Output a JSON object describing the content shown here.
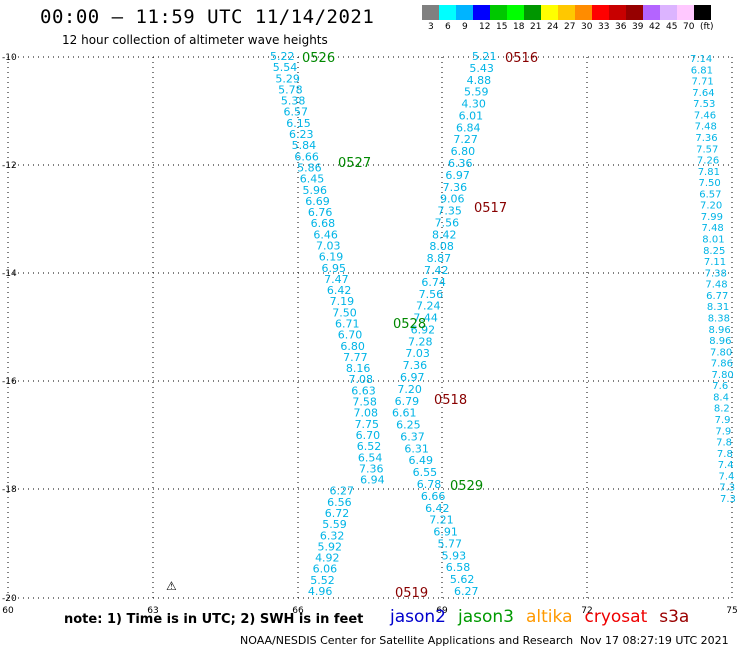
{
  "header": {
    "title": "00:00 – 11:59 UTC 11/14/2021",
    "subtitle": "12 hour collection of altimeter wave heights"
  },
  "legend": {
    "colors": [
      "#808080",
      "#00ffff",
      "#00b4ff",
      "#0000ff",
      "#00c800",
      "#00ff00",
      "#009600",
      "#ffff00",
      "#ffc800",
      "#ff8c00",
      "#ff0000",
      "#c80000",
      "#960000",
      "#b464ff",
      "#dcb4ff",
      "#ffc8ff",
      "#000000"
    ],
    "labels": [
      "3",
      "6",
      "9",
      "12",
      "15",
      "18",
      "21",
      "24",
      "27",
      "30",
      "33",
      "36",
      "39",
      "42",
      "45",
      "70",
      "(ft)"
    ]
  },
  "axes": {
    "lon_labels": [
      "60",
      "63",
      "66",
      "69",
      "72",
      "75"
    ],
    "lat_labels": [
      "-10",
      "-12",
      "-14",
      "-16",
      "-18",
      "-20"
    ]
  },
  "tracks": {
    "colors": {
      "jason3": "#008800",
      "cryosat": "#880000",
      "swh": "#00b4e6"
    },
    "pass_times": [
      {
        "text": "0526",
        "mission": "jason3"
      },
      {
        "text": "0527",
        "mission": "jason3"
      },
      {
        "text": "0528",
        "mission": "jason3"
      },
      {
        "text": "0529",
        "mission": "jason3"
      },
      {
        "text": "0516",
        "mission": "cryosat"
      },
      {
        "text": "0517",
        "mission": "cryosat"
      },
      {
        "text": "0518",
        "mission": "cryosat"
      },
      {
        "text": "0519",
        "mission": "cryosat"
      }
    ],
    "jason3_swh": [
      "5.22",
      "5.54",
      "5.29",
      "5.78",
      "5.38",
      "6.57",
      "6.15",
      "6.23",
      "5.84",
      "6.66",
      "5.86",
      "6.45",
      "5.96",
      "6.69",
      "6.76",
      "6.68",
      "6.46",
      "7.03",
      "6.19",
      "6.95",
      "7.47",
      "6.42",
      "7.19",
      "7.50",
      "6.71",
      "6.70",
      "6.80",
      "7.77",
      "8.16",
      "7.08",
      "6.63",
      "7.58",
      "7.08",
      "7.75",
      "6.70",
      "6.52",
      "6.54",
      "7.36",
      "6.94",
      "6.27",
      "6.56",
      "6.72",
      "5.59",
      "6.32",
      "5.92",
      "4.92",
      "6.06",
      "5.52",
      "4.96"
    ],
    "cryosat_swh": [
      "5.21",
      "5.43",
      "4.88",
      "5.59",
      "4.30",
      "6.01",
      "6.84",
      "7.27",
      "6.80",
      "6.36",
      "6.97",
      "7.36",
      "9.06",
      "7.35",
      "7.56",
      "8.42",
      "8.08",
      "8.87",
      "7.42",
      "6.74",
      "7.56",
      "7.24",
      "7.44",
      "6.92",
      "7.28",
      "7.03",
      "7.36",
      "6.97",
      "7.20",
      "6.79",
      "6.61",
      "6.25",
      "6.37",
      "6.31",
      "6.49",
      "6.55",
      "6.78",
      "6.66",
      "6.42",
      "7.21",
      "6.91",
      "5.77",
      "5.93",
      "6.58",
      "5.62",
      "6.27"
    ],
    "east_swh": [
      "7.14",
      "6.81",
      "7.71",
      "7.64",
      "7.53",
      "7.46",
      "7.48",
      "7.36",
      "7.57",
      "7.26",
      "7.81",
      "7.50",
      "6.57",
      "7.20",
      "7.99",
      "7.48",
      "8.01",
      "8.25",
      "7.11",
      "7.38",
      "7.48",
      "6.77",
      "8.31",
      "8.38",
      "8.96",
      "8.96",
      "7.80",
      "7.86",
      "7.80",
      "7.6",
      "8.4",
      "8.2",
      "7.9",
      "7.9",
      "7.8",
      "7.8",
      "7.4",
      "7.4",
      "7.3",
      "7.3"
    ],
    "island_glyph": "⚠"
  },
  "footer": {
    "note": "note: 1) Time is in UTC; 2) SWH is in feet",
    "missions": [
      {
        "name": "jason2",
        "color": "#0000cc"
      },
      {
        "name": "jason3",
        "color": "#009900"
      },
      {
        "name": "altika",
        "color": "#ff9900"
      },
      {
        "name": "cryosat",
        "color": "#ee0000"
      },
      {
        "name": "s3a",
        "color": "#990000"
      }
    ],
    "credit": "NOAA/NESDIS Center for Satellite Applications and Research",
    "timestamp": "Nov 17 08:27:19 UTC 2021"
  }
}
